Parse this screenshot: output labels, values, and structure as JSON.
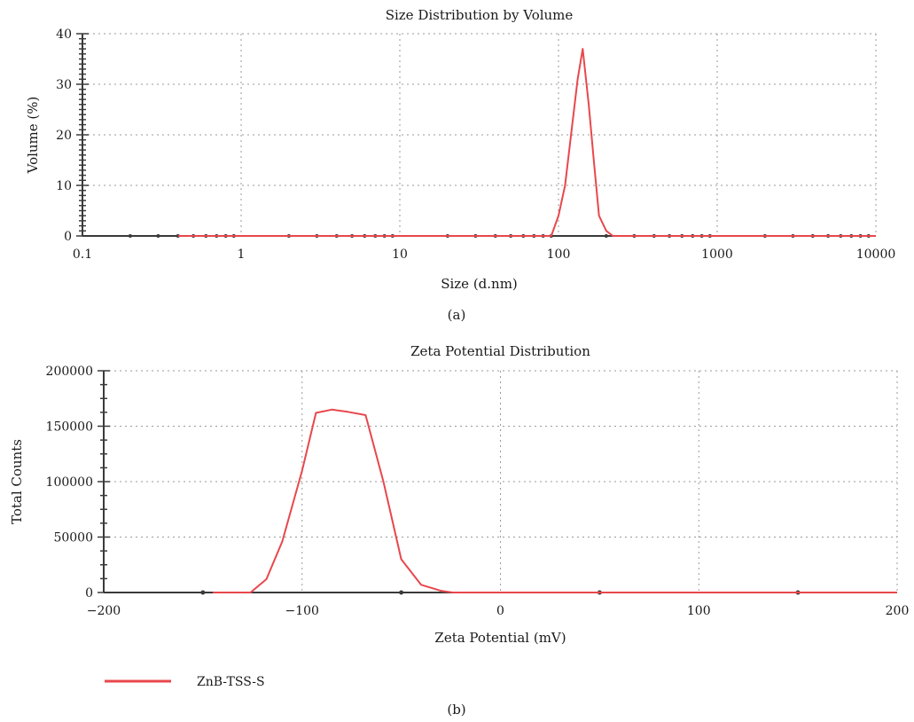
{
  "series_color": "#e8474c",
  "chart_data": [
    {
      "type": "line",
      "panel_label": "(a)",
      "title": "Size Distribution by Volume",
      "xlabel": "Size (d.nm)",
      "ylabel": "Volume (%)",
      "xscale": "log",
      "xlim": [
        0.1,
        10000
      ],
      "ylim": [
        0,
        40
      ],
      "xticks": [
        0.1,
        1,
        10,
        100,
        1000,
        10000
      ],
      "xtick_labels": [
        "0.1",
        "1",
        "10",
        "100",
        "1000",
        "10000"
      ],
      "yticks": [
        0,
        10,
        20,
        30,
        40
      ],
      "ytick_labels": [
        "0",
        "10",
        "20",
        "30",
        "40"
      ],
      "grid": true,
      "series": [
        {
          "name": "ZnB-TSS-S",
          "x": [
            0.4,
            90,
            100,
            110,
            122,
            132,
            142,
            155,
            168,
            180,
            200,
            220,
            10000
          ],
          "y": [
            0,
            0,
            4,
            10,
            22,
            31,
            37,
            26,
            14,
            4,
            1,
            0,
            0
          ]
        }
      ]
    },
    {
      "type": "line",
      "panel_label": "(b)",
      "title": "Zeta Potential Distribution",
      "xlabel": "Zeta Potential (mV)",
      "ylabel": "Total Counts",
      "xlim": [
        -200,
        200
      ],
      "ylim": [
        0,
        200000
      ],
      "xticks": [
        -200,
        -100,
        0,
        100,
        200
      ],
      "xtick_labels": [
        "−200",
        "−100",
        "0",
        "100",
        "200"
      ],
      "yticks": [
        0,
        50000,
        100000,
        150000,
        200000
      ],
      "ytick_labels": [
        "0",
        "50000",
        "100000",
        "150000",
        "200000"
      ],
      "grid": true,
      "legend": {
        "position": "bottom-left",
        "entries": [
          "ZnB-TSS-S"
        ]
      },
      "series": [
        {
          "name": "ZnB-TSS-S",
          "x": [
            -145,
            -126,
            -118,
            -110,
            -100,
            -93,
            -85,
            -77,
            -68,
            -59,
            -50,
            -40,
            -30,
            -24,
            200
          ],
          "y": [
            0,
            0,
            12000,
            46000,
            110000,
            162000,
            165000,
            163000,
            160000,
            100000,
            30000,
            7000,
            1500,
            0,
            0
          ]
        }
      ]
    }
  ]
}
